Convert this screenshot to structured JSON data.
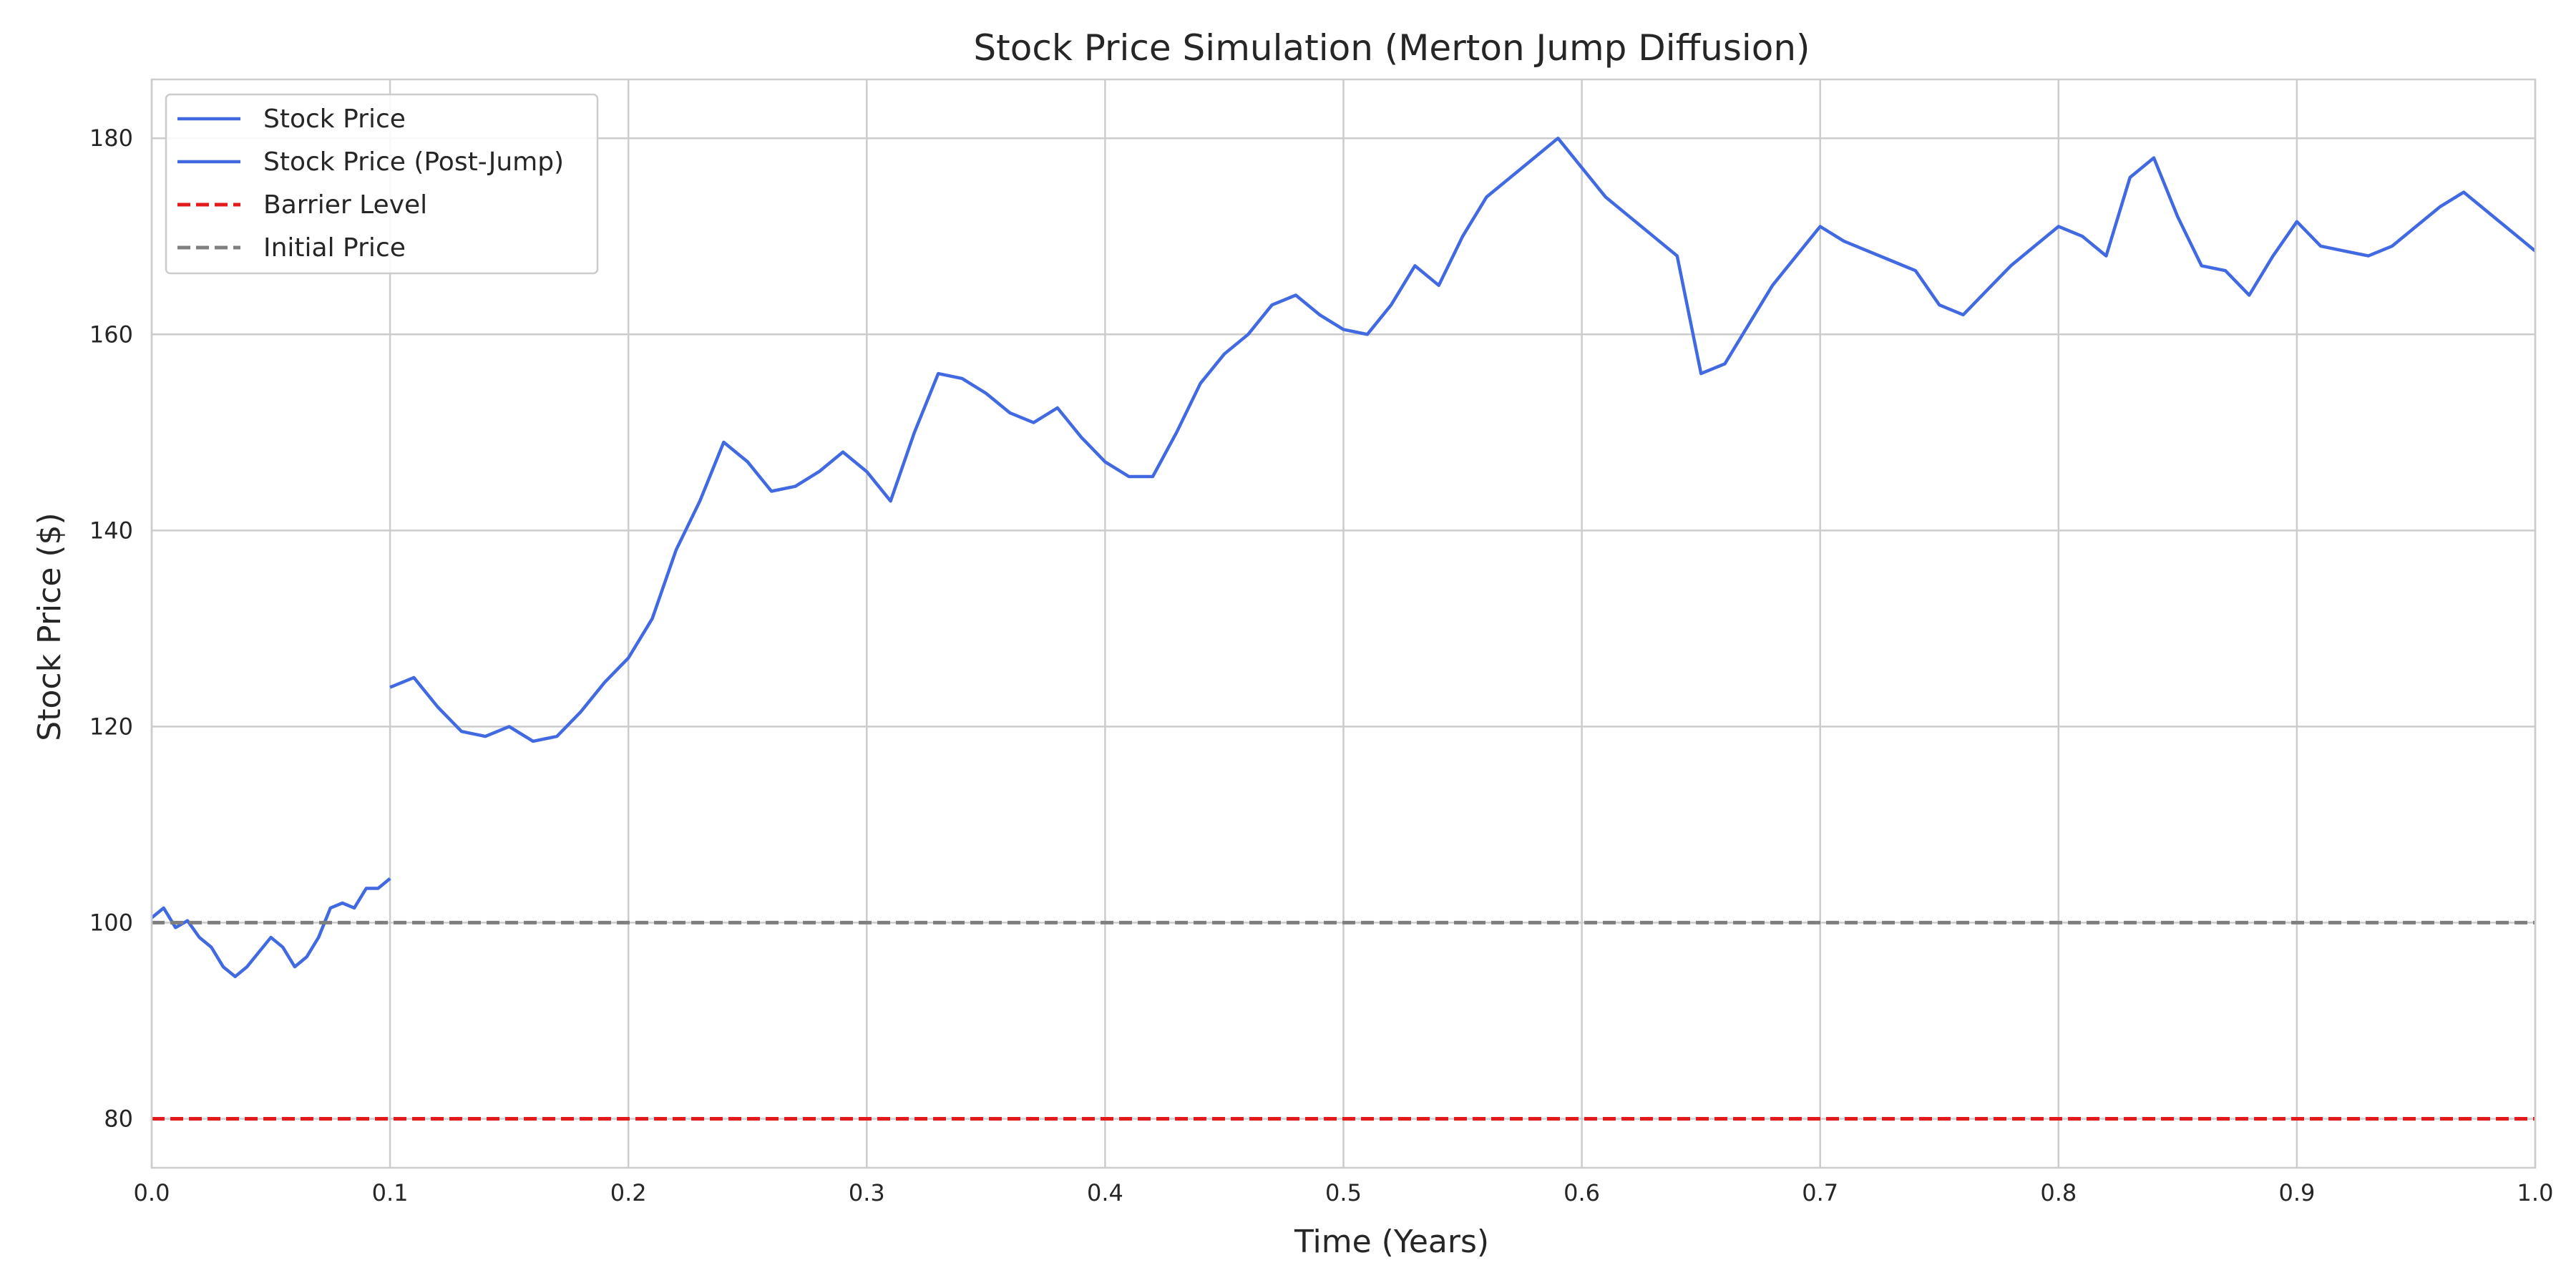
{
  "chart_data": {
    "type": "line",
    "title": "Stock Price Simulation (Merton Jump Diffusion)",
    "xlabel": "Time (Years)",
    "ylabel": "Stock Price ($)",
    "xlim": [
      0,
      1
    ],
    "ylim": [
      75,
      186
    ],
    "x_ticks": [
      "0.0",
      "0.1",
      "0.2",
      "0.3",
      "0.4",
      "0.5",
      "0.6",
      "0.7",
      "0.8",
      "0.9",
      "1.0"
    ],
    "y_ticks": [
      "80",
      "100",
      "120",
      "140",
      "160",
      "180"
    ],
    "grid": true,
    "legend_position": "top-left",
    "series": [
      {
        "name": "Stock Price",
        "color": "#4169e1",
        "style": "solid",
        "x": [
          0.0,
          0.005,
          0.01,
          0.015,
          0.02,
          0.025,
          0.03,
          0.035,
          0.04,
          0.045,
          0.05,
          0.055,
          0.06,
          0.065,
          0.07,
          0.075,
          0.08,
          0.085,
          0.09,
          0.095,
          0.1
        ],
        "y": [
          100.5,
          101.5,
          99.5,
          100.2,
          98.5,
          97.5,
          95.5,
          94.5,
          95.5,
          97.0,
          98.5,
          97.5,
          95.5,
          96.5,
          98.5,
          101.5,
          102.0,
          101.5,
          103.5,
          103.5,
          104.5
        ]
      },
      {
        "name": "Stock Price (Post-Jump)",
        "color": "#4169e1",
        "style": "solid",
        "x": [
          0.1,
          0.11,
          0.12,
          0.13,
          0.14,
          0.15,
          0.16,
          0.17,
          0.18,
          0.19,
          0.2,
          0.21,
          0.22,
          0.23,
          0.24,
          0.25,
          0.26,
          0.27,
          0.28,
          0.29,
          0.3,
          0.31,
          0.32,
          0.33,
          0.34,
          0.35,
          0.36,
          0.37,
          0.38,
          0.39,
          0.4,
          0.41,
          0.42,
          0.43,
          0.44,
          0.45,
          0.46,
          0.47,
          0.48,
          0.49,
          0.5,
          0.51,
          0.52,
          0.53,
          0.54,
          0.55,
          0.56,
          0.57,
          0.58,
          0.59,
          0.6,
          0.61,
          0.62,
          0.63,
          0.64,
          0.65,
          0.66,
          0.67,
          0.68,
          0.69,
          0.7,
          0.71,
          0.72,
          0.73,
          0.74,
          0.75,
          0.76,
          0.77,
          0.78,
          0.79,
          0.8,
          0.81,
          0.82,
          0.83,
          0.84,
          0.85,
          0.86,
          0.87,
          0.88,
          0.89,
          0.9,
          0.91,
          0.92,
          0.93,
          0.94,
          0.95,
          0.96,
          0.97,
          0.98,
          0.99,
          1.0
        ],
        "y": [
          124.0,
          125.0,
          122.0,
          119.5,
          119.0,
          120.0,
          118.5,
          119.0,
          121.5,
          124.5,
          127.0,
          131.0,
          138.0,
          143.0,
          149.0,
          147.0,
          144.0,
          144.5,
          146.0,
          148.0,
          146.0,
          143.0,
          150.0,
          156.0,
          155.5,
          154.0,
          152.0,
          151.0,
          152.5,
          149.5,
          147.0,
          145.5,
          145.5,
          150.0,
          155.0,
          158.0,
          160.0,
          163.0,
          164.0,
          162.0,
          160.5,
          160.0,
          163.0,
          167.0,
          165.0,
          170.0,
          174.0,
          176.0,
          178.0,
          180.0,
          177.0,
          174.0,
          172.0,
          170.0,
          168.0,
          156.0,
          157.0,
          161.0,
          165.0,
          168.0,
          171.0,
          169.5,
          168.5,
          167.5,
          166.5,
          163.0,
          162.0,
          164.5,
          167.0,
          169.0,
          171.0,
          170.0,
          168.0,
          176.0,
          178.0,
          172.0,
          167.0,
          166.5,
          164.0,
          168.0,
          171.5,
          169.0,
          168.5,
          168.0,
          169.0,
          171.0,
          173.0,
          174.5,
          172.5,
          170.5,
          168.5
        ]
      },
      {
        "name": "Barrier Level",
        "color": "#e31a1c",
        "style": "dashed",
        "x": [
          0,
          1
        ],
        "y": [
          80,
          80
        ]
      },
      {
        "name": "Initial Price",
        "color": "#7f7f7f",
        "style": "dashed",
        "x": [
          0,
          1
        ],
        "y": [
          100,
          100
        ]
      }
    ]
  }
}
